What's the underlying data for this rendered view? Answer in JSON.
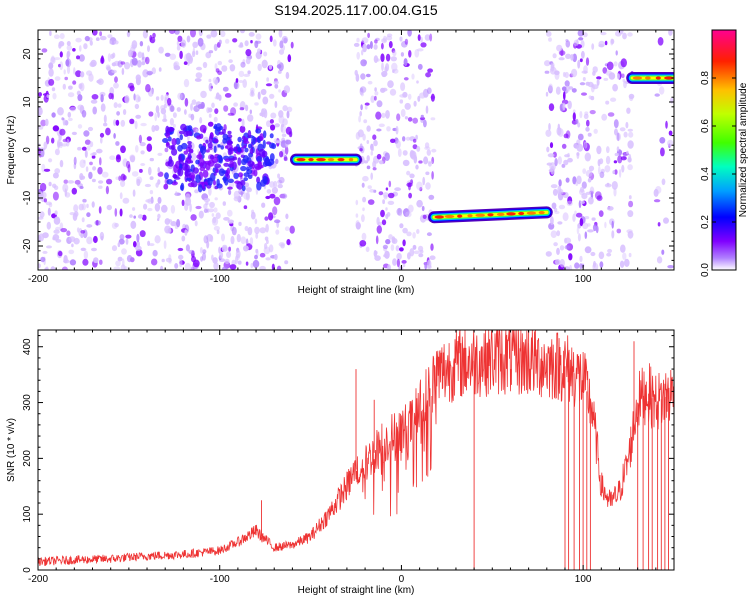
{
  "figure": {
    "title": "S194.2025.117.00.04.G15"
  },
  "chart_data": [
    {
      "type": "heatmap",
      "title": "S194.2025.117.00.04.G15",
      "xlabel": "Height of straight line (km)",
      "ylabel": "Frequency (Hz)",
      "xlim": [
        -200,
        150
      ],
      "ylim": [
        -25,
        25
      ],
      "xticks": [
        -200,
        -100,
        0,
        100
      ],
      "yticks": [
        -20,
        -10,
        0,
        10,
        20
      ],
      "colorbar": {
        "label": "Normalized spectral amplitude",
        "range": [
          0,
          1
        ],
        "ticks": [
          0.0,
          0.2,
          0.4,
          0.6,
          0.8
        ],
        "colors": [
          "#ffffff",
          "#8000ff",
          "#0000ff",
          "#00c0ff",
          "#00ff80",
          "#80ff00",
          "#ffff00",
          "#ff8000",
          "#ff0000",
          "#ff0080"
        ]
      },
      "background_noise_regions": [
        {
          "x": [
            -200,
            -60
          ],
          "density": "high"
        },
        {
          "x": [
            -25,
            18
          ],
          "density": "high"
        },
        {
          "x": [
            80,
            127
          ],
          "density": "high"
        },
        {
          "x": [
            140,
            150
          ],
          "density": "medium"
        }
      ],
      "features": [
        {
          "name": "noise cluster",
          "x": [
            -130,
            -70
          ],
          "y": [
            -8,
            5
          ],
          "level": 0.25
        },
        {
          "name": "signal track 1",
          "x": [
            -58,
            -25
          ],
          "y_start": -2,
          "y_end": -2,
          "level": 0.55
        },
        {
          "name": "signal track 2",
          "x": [
            18,
            80
          ],
          "y_start": -14,
          "y_end": -13,
          "level": 0.75
        },
        {
          "name": "signal track 3",
          "x": [
            127,
            150
          ],
          "y_start": 15,
          "y_end": 15,
          "level": 0.8
        }
      ]
    },
    {
      "type": "line",
      "xlabel": "Height of straight line (km)",
      "ylabel": "SNR (10 * v/v)",
      "xlim": [
        -200,
        150
      ],
      "ylim": [
        0,
        430
      ],
      "xticks": [
        -200,
        -100,
        0,
        100
      ],
      "yticks": [
        0,
        100,
        200,
        300,
        400
      ],
      "color": "#ee3333",
      "x": [
        -200,
        -180,
        -160,
        -140,
        -120,
        -100,
        -90,
        -80,
        -70,
        -60,
        -50,
        -40,
        -30,
        -25,
        -20,
        -15,
        -10,
        -5,
        0,
        5,
        10,
        15,
        20,
        30,
        40,
        50,
        60,
        70,
        80,
        90,
        100,
        105,
        110,
        115,
        120,
        125,
        130,
        135,
        140,
        145,
        150
      ],
      "y": [
        15,
        18,
        20,
        25,
        28,
        35,
        50,
        70,
        40,
        45,
        60,
        100,
        150,
        180,
        190,
        210,
        230,
        240,
        250,
        260,
        290,
        320,
        350,
        370,
        375,
        380,
        380,
        375,
        370,
        365,
        340,
        290,
        150,
        120,
        140,
        200,
        300,
        320,
        300,
        310,
        320
      ],
      "dropouts": [
        40,
        90,
        92,
        95,
        98,
        100,
        102,
        104,
        130,
        133,
        136,
        138,
        141,
        143,
        145,
        147
      ],
      "spikes": [
        {
          "x": -77,
          "y": 125
        },
        {
          "x": -25,
          "y": 360
        },
        {
          "x": -15,
          "y": 305
        },
        {
          "x": 70,
          "y": 430
        },
        {
          "x": 128,
          "y": 410
        }
      ]
    }
  ]
}
